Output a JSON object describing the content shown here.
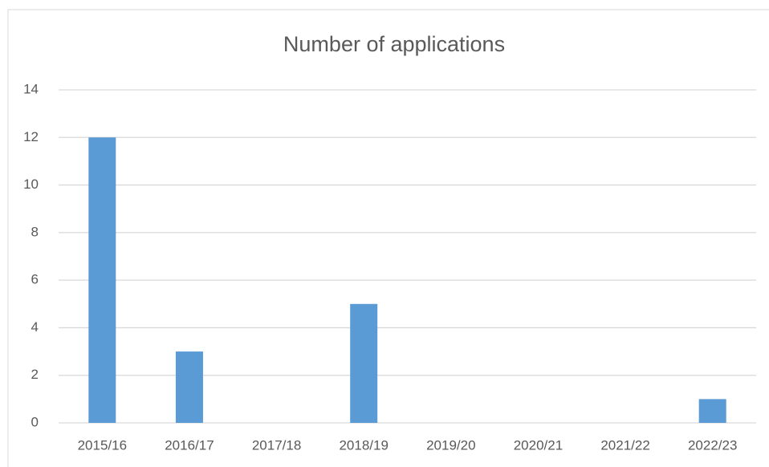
{
  "chart_data": {
    "type": "bar",
    "title": "Number of applications",
    "categories": [
      "2015/16",
      "2016/17",
      "2017/18",
      "2018/19",
      "2019/20",
      "2020/21",
      "2021/22",
      "2022/23"
    ],
    "values": [
      12,
      3,
      0,
      5,
      0,
      0,
      0,
      1
    ],
    "color": "#5b9bd5",
    "ylim": [
      0,
      14
    ],
    "yticks": [
      0,
      2,
      4,
      6,
      8,
      10,
      12,
      14
    ],
    "grid": true
  }
}
